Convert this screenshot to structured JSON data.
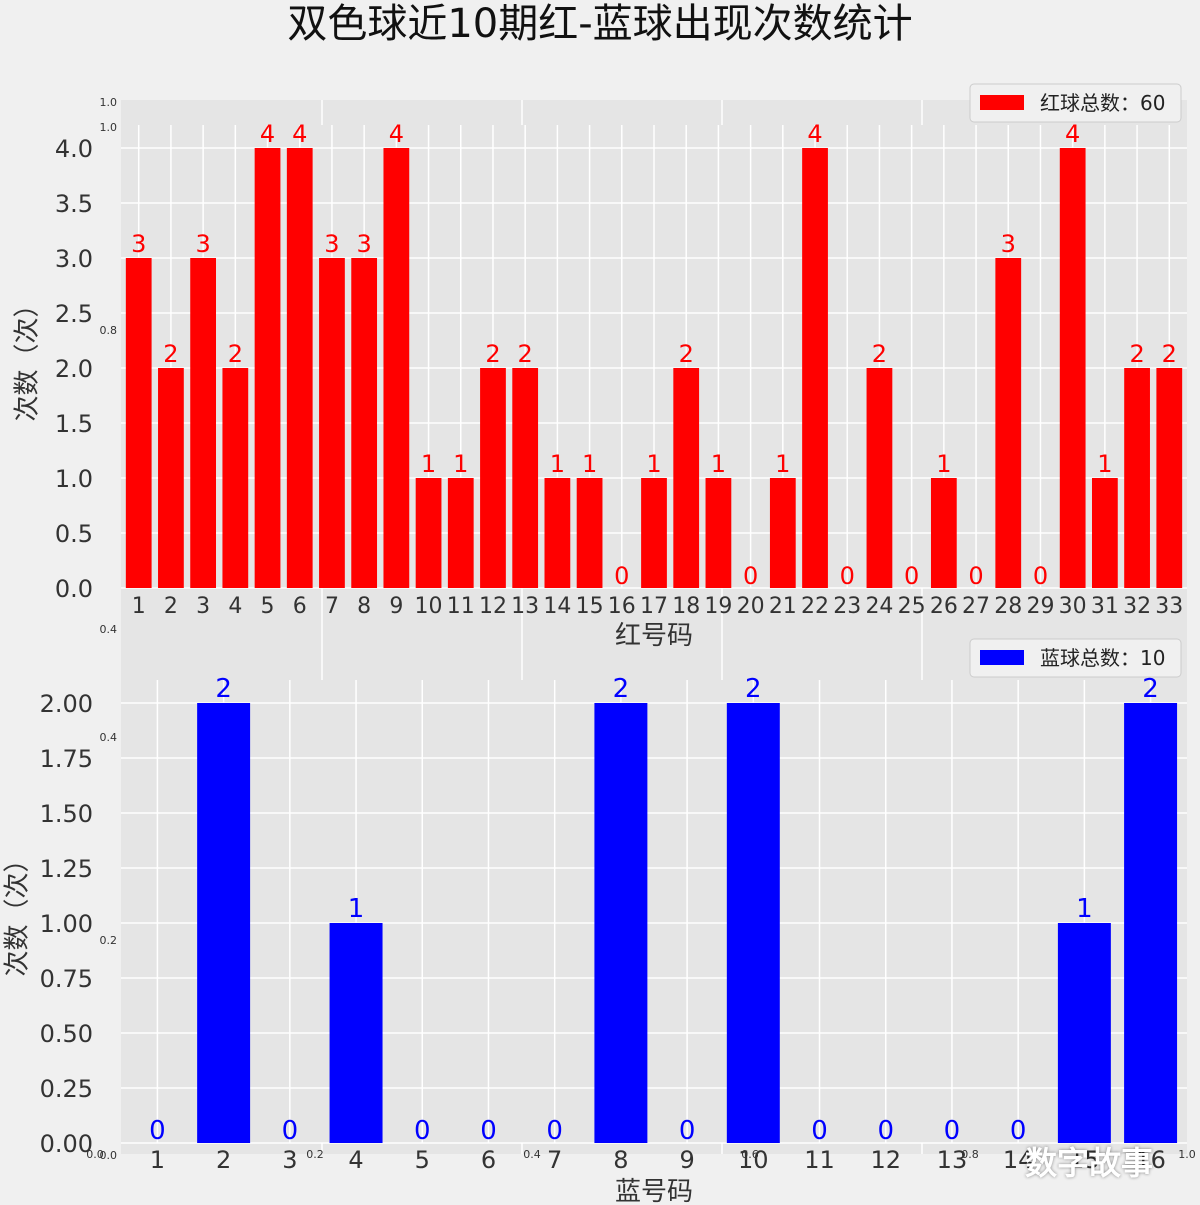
{
  "figure": {
    "title": "双色球近10期红-蓝球出现次数统计",
    "watermark": "数字故事",
    "underlay_ticks": {
      "y_labels": [
        "1.0",
        "1.0",
        "0.8",
        "0.4",
        "0.4",
        "0.2",
        "0.0"
      ],
      "x_labels": [
        "0.0",
        "0.2",
        "0.4",
        "0.6",
        "0.8",
        "1.0"
      ]
    }
  },
  "chart_data": [
    {
      "type": "bar",
      "color": "#ff0000",
      "categories": [
        "1",
        "2",
        "3",
        "4",
        "5",
        "6",
        "7",
        "8",
        "9",
        "10",
        "11",
        "12",
        "13",
        "14",
        "15",
        "16",
        "17",
        "18",
        "19",
        "20",
        "21",
        "22",
        "23",
        "24",
        "25",
        "26",
        "27",
        "28",
        "29",
        "30",
        "31",
        "32",
        "33"
      ],
      "series": [
        {
          "name": "红球总数：60",
          "values": [
            3,
            2,
            3,
            2,
            4,
            4,
            3,
            3,
            4,
            1,
            1,
            2,
            2,
            1,
            1,
            0,
            1,
            2,
            1,
            0,
            1,
            4,
            0,
            2,
            0,
            1,
            0,
            3,
            0,
            4,
            1,
            2,
            2
          ]
        }
      ],
      "xlabel": "红号码",
      "ylabel": "次数（次）",
      "yticks": [
        "0.0",
        "0.5",
        "1.0",
        "1.5",
        "2.0",
        "2.5",
        "3.0",
        "3.5",
        "4.0"
      ],
      "ylim": [
        0,
        4.2
      ],
      "grid": true,
      "legend": "top-right"
    },
    {
      "type": "bar",
      "color": "#0000ff",
      "categories": [
        "1",
        "2",
        "3",
        "4",
        "5",
        "6",
        "7",
        "8",
        "9",
        "10",
        "11",
        "12",
        "13",
        "14",
        "15",
        "16"
      ],
      "series": [
        {
          "name": "蓝球总数：10",
          "values": [
            0,
            2,
            0,
            1,
            0,
            0,
            0,
            2,
            0,
            2,
            0,
            0,
            0,
            0,
            1,
            2
          ]
        }
      ],
      "xlabel": "蓝号码",
      "ylabel": "次数（次）",
      "yticks": [
        "0.00",
        "0.25",
        "0.50",
        "0.75",
        "1.00",
        "1.25",
        "1.50",
        "1.75",
        "2.00"
      ],
      "ylim": [
        0,
        2.1
      ],
      "grid": true,
      "legend": "top-right"
    }
  ]
}
